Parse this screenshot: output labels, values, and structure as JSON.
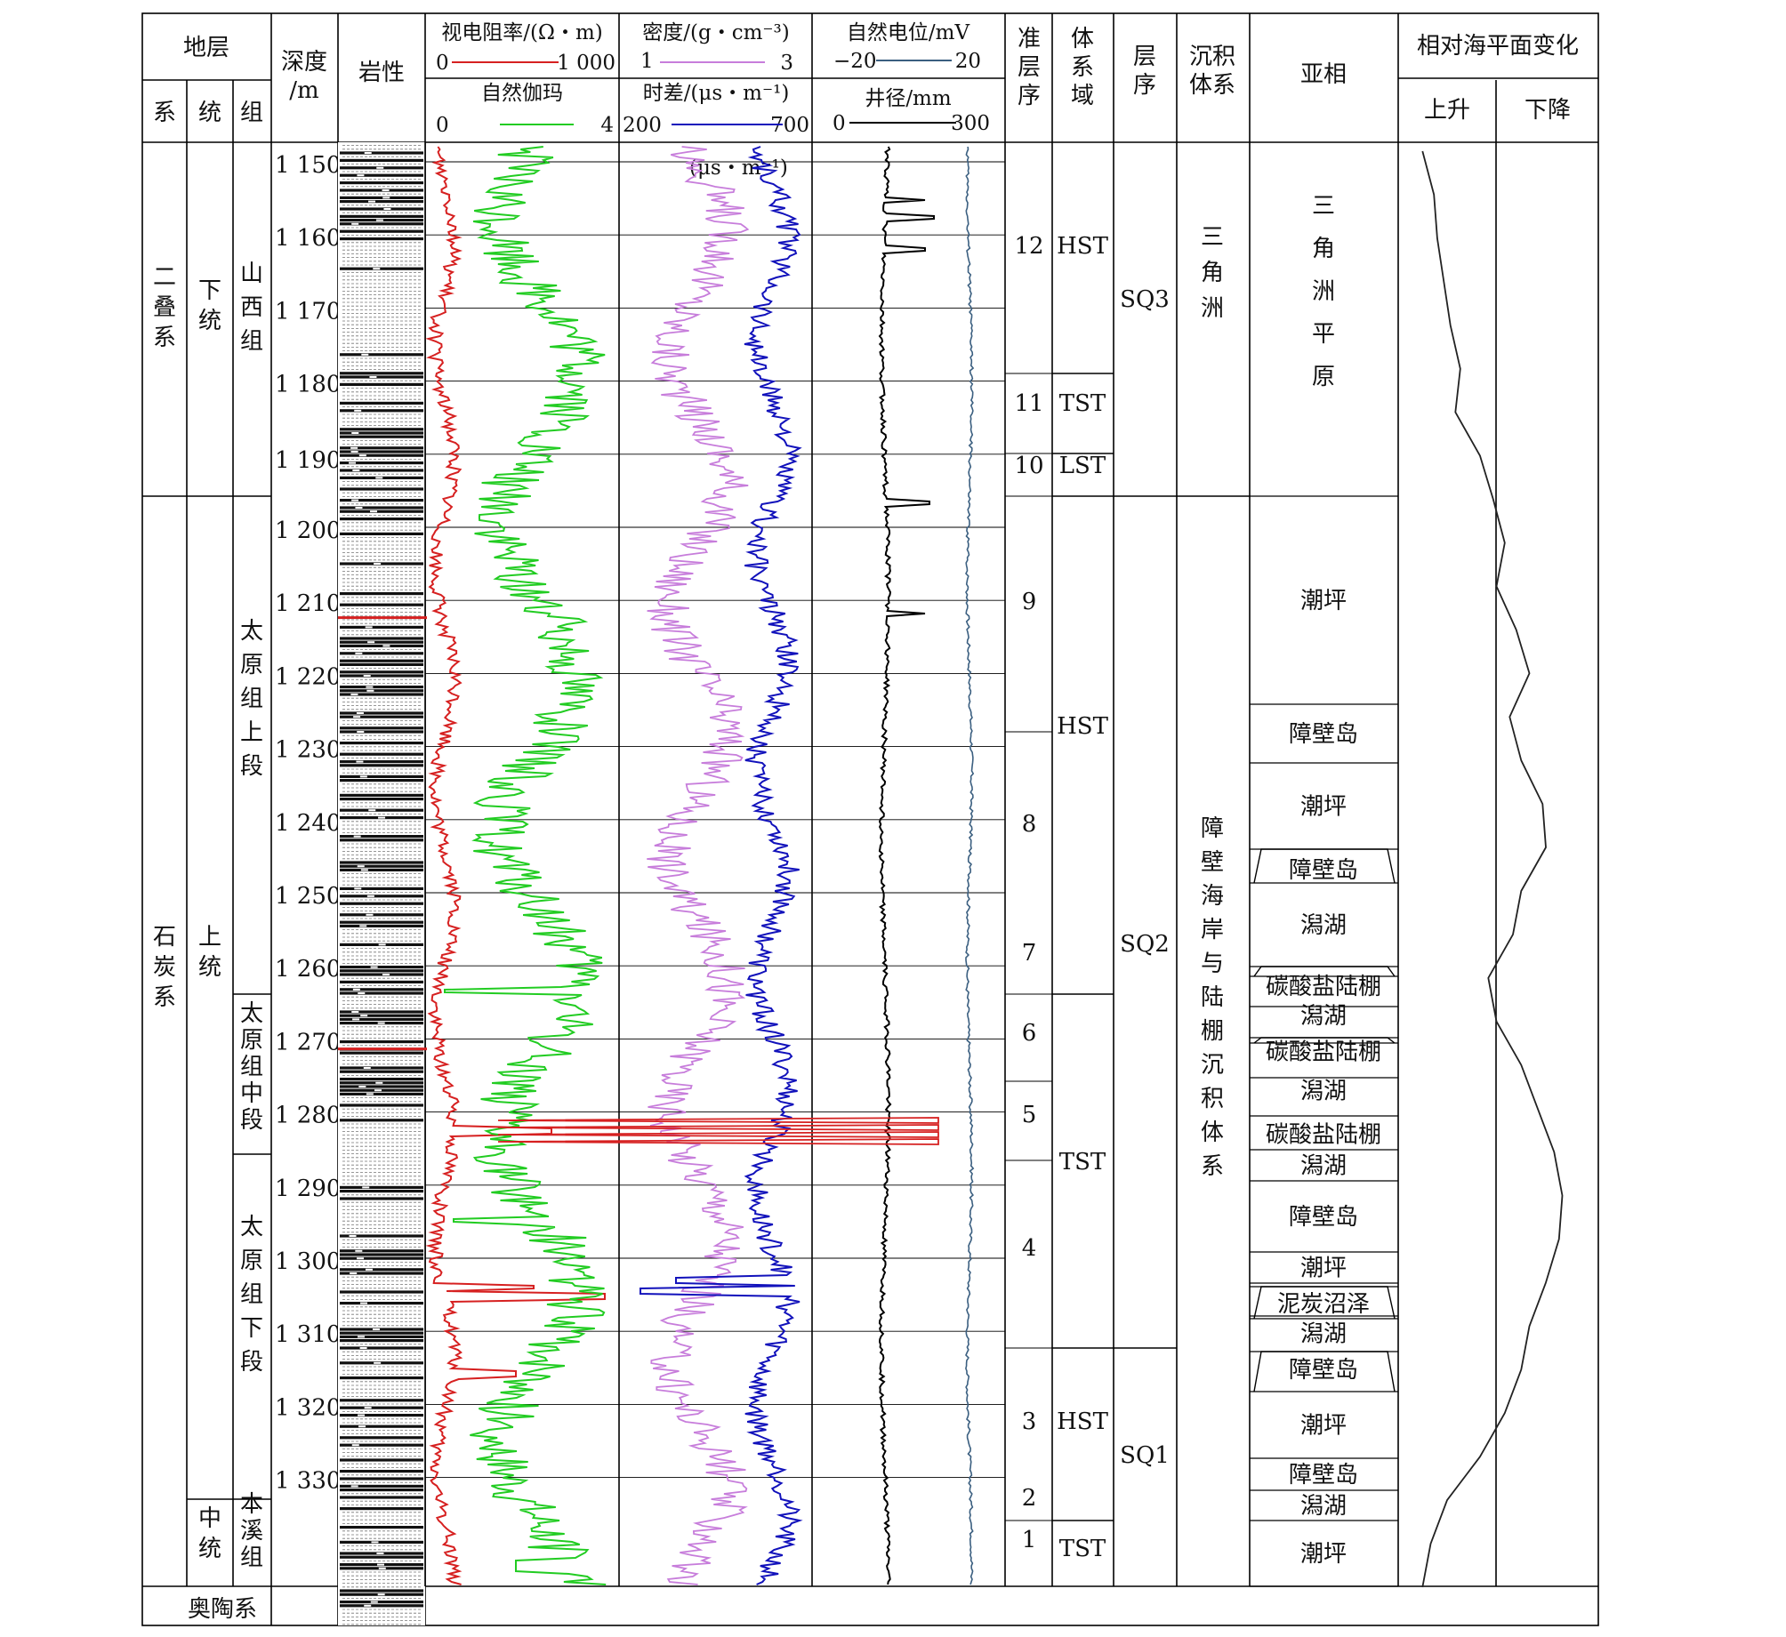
{
  "header": {
    "strata": "地层",
    "system": "系",
    "series": "统",
    "formation": "组",
    "depth_line1": "深度",
    "depth_line2": "/m",
    "lithology": "岩性",
    "resistivity": {
      "title": "视电阻率/(Ω・m)",
      "min": "0",
      "max": "1 000",
      "color": "#d62020"
    },
    "gamma": {
      "title": "自然伽玛",
      "min": "0",
      "max": "4",
      "color": "#22cc22"
    },
    "density": {
      "title": "密度/(g・cm⁻³)",
      "min": "1",
      "max": "3",
      "color": "#c77ddb"
    },
    "sonic": {
      "title": "时差/(μs・m⁻¹)",
      "min": "200",
      "max": "700",
      "color": "#1111bb"
    },
    "sp": {
      "title": "自然电位/mV",
      "min": "−20",
      "max": "20",
      "color": "#3b5f80"
    },
    "caliper": {
      "title": "井径/mm",
      "min": "0",
      "max": "300",
      "color": "#000000"
    },
    "parasequence": "准层序",
    "systems_tract": "体系域",
    "sequence": "层序",
    "depo_system": "沉积体系",
    "subfacies": "亚相",
    "sea_level": "相对海平面变化",
    "rise": "上升",
    "fall": "下降",
    "sonic_unit_note": "(μs・m⁻¹)"
  },
  "systems": [
    "二叠系",
    "石炭系",
    "奥陶系"
  ],
  "series_list": [
    "下统",
    "上统",
    "中统"
  ],
  "formations": [
    "山西组",
    "太原组上段",
    "太原组中段",
    "太原组下段",
    "本溪组"
  ],
  "depth_ticks": [
    "1 150",
    "1 160",
    "1 170",
    "1 180",
    "1 190",
    "1 200",
    "1 210",
    "1 220",
    "1 230",
    "1 240",
    "1 250",
    "1 260",
    "1 270",
    "1 280",
    "1 290",
    "1 300",
    "1 310",
    "1 320",
    "1 330"
  ],
  "parasequences": [
    "12",
    "11",
    "10",
    "9",
    "8",
    "7",
    "6",
    "5",
    "4",
    "3",
    "2",
    "1"
  ],
  "systems_tracts": [
    "HST",
    "TST",
    "LST",
    "HST",
    "TST",
    "HST",
    "TST"
  ],
  "sequences": [
    "SQ3",
    "SQ2",
    "SQ1"
  ],
  "depo_systems": [
    "三角洲",
    "障壁海岸与陆棚沉积体系"
  ],
  "subfacies": [
    "三角洲平原",
    "潮坪",
    "障壁岛",
    "潮坪",
    "障壁岛",
    "潟湖",
    "碳酸盐陆棚",
    "潟湖",
    "碳酸盐陆棚",
    "潟湖",
    "碳酸盐陆棚",
    "潟湖",
    "障壁岛",
    "潮坪",
    "泥炭沼泽",
    "潟湖",
    "障壁岛",
    "潮坪",
    "障壁岛",
    "潟湖",
    "潮坪"
  ],
  "sea_level_curve": {
    "description_values_fraction_rise": [
      0.95,
      0.88,
      0.86,
      0.82,
      0.78,
      0.72,
      0.75,
      0.6,
      0.52,
      0.45,
      0.5,
      0.38,
      0.3,
      0.42,
      0.35,
      0.22,
      0.2,
      0.35,
      0.4,
      0.55,
      0.5,
      0.35,
      0.25,
      0.15,
      0.1,
      0.12,
      0.2,
      0.3,
      0.35,
      0.45,
      0.6,
      0.8,
      0.9,
      0.95
    ]
  }
}
